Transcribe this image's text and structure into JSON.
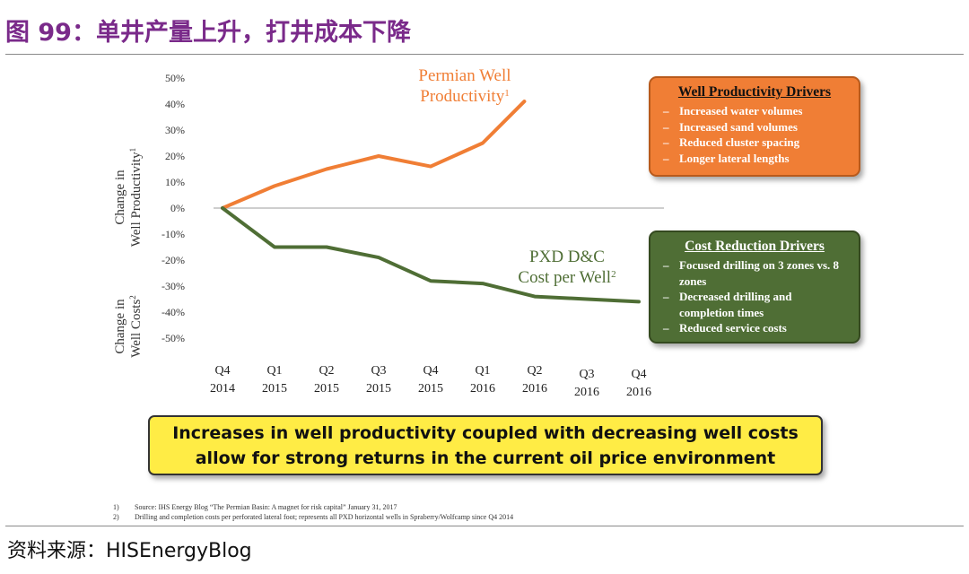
{
  "figure_title": "图 99：单井产量上升，打井成本下降",
  "source": "资料来源：HISEnergyBlog",
  "chart_data": {
    "type": "line",
    "categories": [
      "Q4\n2014",
      "Q1\n2015",
      "Q2\n2015",
      "Q3\n2015",
      "Q4\n2015",
      "Q1\n2016",
      "Q2\n2016",
      "Q3\n2016",
      "Q4\n2016"
    ],
    "y_ticks": [
      "50%",
      "40%",
      "30%",
      "20%",
      "10%",
      "0%",
      "-10%",
      "-20%",
      "-30%",
      "-40%",
      "-50%"
    ],
    "ylim": [
      -50,
      50
    ],
    "grid": false,
    "ylabel_top": [
      "Change in",
      "Well Productivity"
    ],
    "ylabel_top_sup": "1",
    "ylabel_bottom": [
      "Change in",
      "Well Costs"
    ],
    "ylabel_bottom_sup": "2",
    "series": [
      {
        "name_lines": [
          "Permian Well",
          "Productivity"
        ],
        "name_sup": "1",
        "color": "#f07e35",
        "x": [
          0,
          1,
          2,
          3,
          4,
          5,
          5.8
        ],
        "values": [
          0,
          8.5,
          15,
          20,
          16,
          25,
          41
        ]
      },
      {
        "name_lines": [
          "PXD D&C",
          "Cost per Well"
        ],
        "name_sup": "2",
        "color": "#4f6e35",
        "x": [
          0,
          1,
          2,
          3,
          4,
          5,
          6,
          7,
          8
        ],
        "values": [
          0,
          -15,
          -15,
          -19,
          -28,
          -29,
          -34,
          -35,
          -36
        ]
      }
    ]
  },
  "productivity_box": {
    "title": "Well Productivity Drivers",
    "items": [
      "Increased water volumes",
      "Increased sand volumes",
      "Reduced cluster spacing",
      "Longer lateral lengths"
    ],
    "color": "#f07e35"
  },
  "cost_box": {
    "title": "Cost Reduction Drivers",
    "items": [
      "Focused drilling on 3 zones vs. 8 zones",
      "Decreased drilling and completion times",
      "Reduced service costs"
    ],
    "color": "#4f6e35"
  },
  "banner": {
    "line1": "Increases in well productivity coupled with decreasing well costs",
    "line2": "allow for strong returns in the current oil price environment",
    "color": "#ffec45"
  },
  "footnotes": [
    {
      "num": "1)",
      "text": "Source: IHS Energy Blog “The Permian Basin: A magnet for risk capital” January 31, 2017"
    },
    {
      "num": "2)",
      "text": "Drilling and completion costs per perforated lateral foot; represents all PXD horizontal wells in Spraberry/Wolfcamp since Q4 2014"
    }
  ]
}
